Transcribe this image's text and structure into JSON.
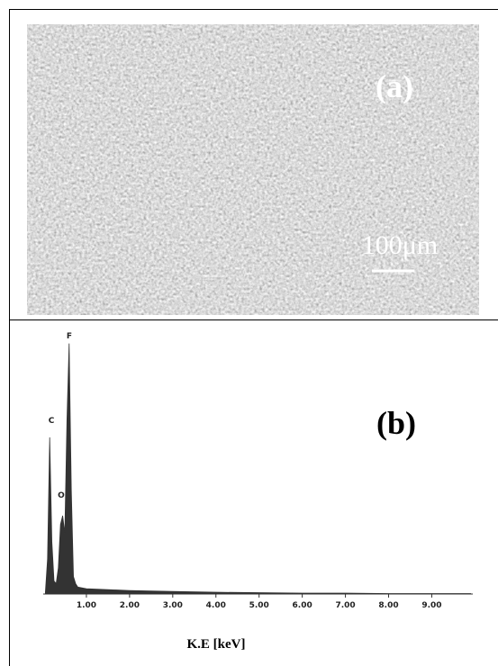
{
  "panel_a": {
    "label": "(a)",
    "scale_bar": "100μm"
  },
  "chart_data": {
    "type": "area",
    "label": "(b)",
    "x_label": "K.E [keV]",
    "color": "#333333",
    "peak_labels": [
      "C",
      "O",
      "F"
    ],
    "x": [
      0.05,
      0.1,
      0.15,
      0.2,
      0.25,
      0.3,
      0.35,
      0.4,
      0.45,
      0.5,
      0.55,
      0.6,
      0.65,
      0.7,
      0.75,
      0.8,
      1.0,
      1.5,
      2.0,
      3.0,
      4.0,
      5.0,
      6.0,
      7.0,
      8.0,
      9.0,
      9.9
    ],
    "values": [
      2,
      40,
      180,
      60,
      15,
      12,
      30,
      80,
      90,
      70,
      200,
      288,
      120,
      20,
      12,
      8,
      6,
      5,
      4,
      3,
      2,
      1.5,
      1,
      1,
      0.5,
      0.5,
      0.5
    ],
    "xlim": [
      0,
      9.95
    ],
    "ylim": [
      0,
      300
    ],
    "xticks": [
      {
        "value": 1,
        "label": "1.00"
      },
      {
        "value": 2,
        "label": "2.00"
      },
      {
        "value": 3,
        "label": "3.00"
      },
      {
        "value": 4,
        "label": "4.00"
      },
      {
        "value": 5,
        "label": "5.00"
      },
      {
        "value": 6,
        "label": "6.00"
      },
      {
        "value": 7,
        "label": "7.00"
      },
      {
        "value": 8,
        "label": "8.00"
      },
      {
        "value": 9,
        "label": "9.00"
      }
    ]
  }
}
